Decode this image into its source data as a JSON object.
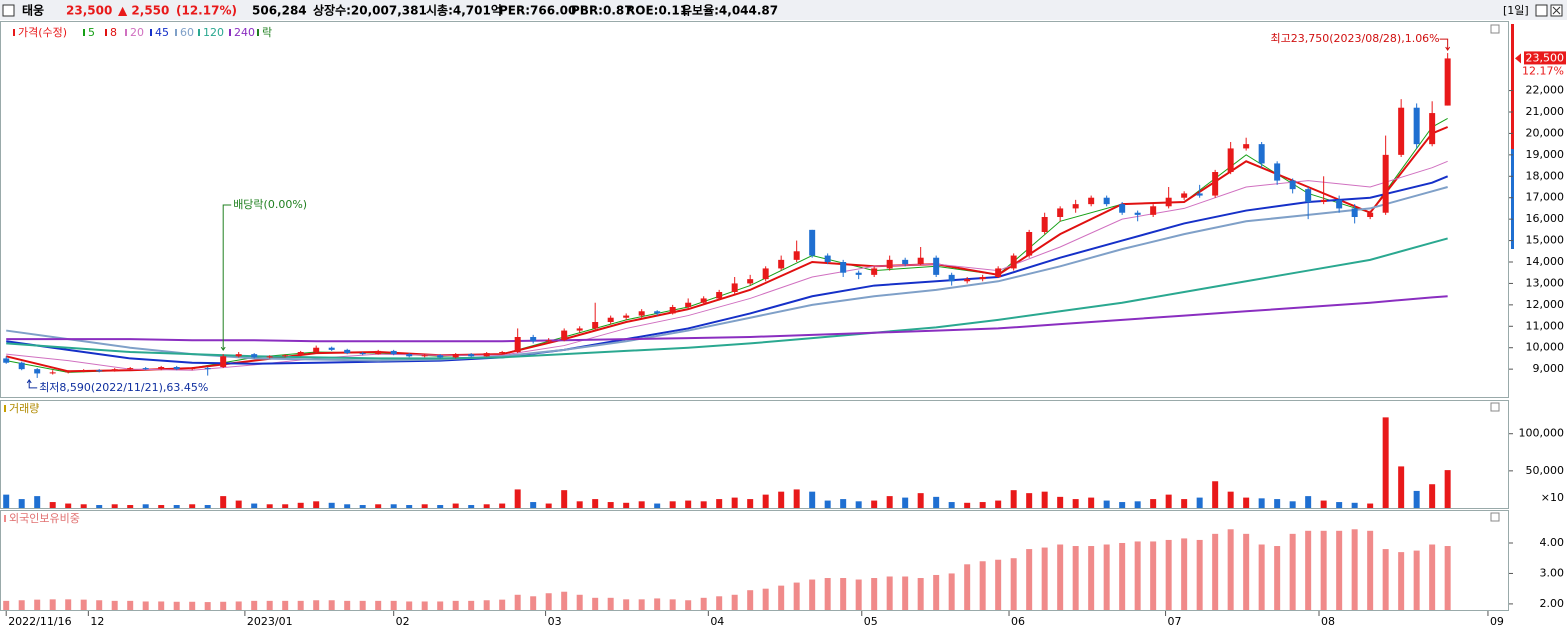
{
  "header": {
    "name": "태웅",
    "price": "23,500",
    "change": "▲ 2,550",
    "change_pct": "(12.17%)",
    "volume": "506,284",
    "listed": "상장수:20,007,381",
    "market_cap": "시총:4,701억",
    "per": "PER:766.00",
    "pbr": "PBR:0.87",
    "roe": "ROE:0.11",
    "reserve": "유보율:4,044.87",
    "period": "[1일]"
  },
  "chart_data": {
    "type": "candlestick",
    "legend": {
      "price": "가격(수정)",
      "ex": "락"
    },
    "xlim": [
      -0.4,
      96.7
    ],
    "xticks": [
      {
        "value": 0,
        "label": "2022/11/16"
      },
      {
        "value": 5.3,
        "label": "12"
      },
      {
        "value": 15.4,
        "label": "2023/01"
      },
      {
        "value": 25,
        "label": "02"
      },
      {
        "value": 34.8,
        "label": "03"
      },
      {
        "value": 45.3,
        "label": "04"
      },
      {
        "value": 55.2,
        "label": "05"
      },
      {
        "value": 64.7,
        "label": "06"
      },
      {
        "value": 74.8,
        "label": "07"
      },
      {
        "value": 84.7,
        "label": "08"
      },
      {
        "value": 95.6,
        "label": "09"
      }
    ],
    "ylim": [
      7700,
      25200
    ],
    "yticks": [
      {
        "value": 9000,
        "label": "9,000"
      },
      {
        "value": 10000,
        "label": "10,000"
      },
      {
        "value": 11000,
        "label": "11,000"
      },
      {
        "value": 12000,
        "label": "12,000"
      },
      {
        "value": 13000,
        "label": "13,000"
      },
      {
        "value": 14000,
        "label": "14,000"
      },
      {
        "value": 15000,
        "label": "15,000"
      },
      {
        "value": 16000,
        "label": "16,000"
      },
      {
        "value": 17000,
        "label": "17,000"
      },
      {
        "value": 18000,
        "label": "18,000"
      },
      {
        "value": 19000,
        "label": "19,000"
      },
      {
        "value": 20000,
        "label": "20,000"
      },
      {
        "value": 21000,
        "label": "21,000"
      },
      {
        "value": 22000,
        "label": "22,000"
      }
    ],
    "price_axis_label": {
      "value": 23500,
      "label": "23,500",
      "change": "12.17%"
    },
    "up_color": "#e8191a",
    "down_color": "#1f6fd1",
    "candles": [
      [
        9500,
        9600,
        9250,
        9300
      ],
      [
        9300,
        9350,
        8950,
        9000
      ],
      [
        9000,
        9050,
        8590,
        8800
      ],
      [
        8800,
        8950,
        8750,
        8850
      ],
      [
        8850,
        8950,
        8800,
        8900
      ],
      [
        8900,
        9000,
        8850,
        8950
      ],
      [
        8950,
        9000,
        8850,
        8900
      ],
      [
        8900,
        9050,
        8880,
        9000
      ],
      [
        9000,
        9100,
        8950,
        9050
      ],
      [
        9050,
        9100,
        8950,
        9000
      ],
      [
        9000,
        9150,
        8950,
        9100
      ],
      [
        9100,
        9150,
        8950,
        9000
      ],
      [
        9000,
        9100,
        8950,
        9050
      ],
      [
        9050,
        9100,
        8700,
        9000
      ],
      [
        9100,
        9700,
        9050,
        9600
      ],
      [
        9600,
        9800,
        9550,
        9700
      ],
      [
        9700,
        9750,
        9500,
        9550
      ],
      [
        9550,
        9650,
        9500,
        9600
      ],
      [
        9600,
        9700,
        9550,
        9650
      ],
      [
        9650,
        9850,
        9600,
        9800
      ],
      [
        9800,
        10100,
        9750,
        10000
      ],
      [
        10000,
        10050,
        9850,
        9900
      ],
      [
        9900,
        9950,
        9700,
        9750
      ],
      [
        9750,
        9800,
        9650,
        9700
      ],
      [
        9700,
        9900,
        9680,
        9850
      ],
      [
        9850,
        9900,
        9650,
        9700
      ],
      [
        9700,
        9750,
        9550,
        9600
      ],
      [
        9600,
        9700,
        9550,
        9650
      ],
      [
        9650,
        9700,
        9500,
        9550
      ],
      [
        9550,
        9750,
        9500,
        9700
      ],
      [
        9700,
        9750,
        9550,
        9600
      ],
      [
        9600,
        9800,
        9580,
        9750
      ],
      [
        9750,
        9850,
        9700,
        9800
      ],
      [
        9800,
        10900,
        9750,
        10500
      ],
      [
        10500,
        10600,
        10200,
        10300
      ],
      [
        10300,
        10450,
        10200,
        10350
      ],
      [
        10350,
        10900,
        10300,
        10800
      ],
      [
        10800,
        11000,
        10700,
        10900
      ],
      [
        10900,
        12100,
        10850,
        11200
      ],
      [
        11200,
        11500,
        11100,
        11400
      ],
      [
        11400,
        11600,
        11300,
        11500
      ],
      [
        11500,
        11800,
        11400,
        11700
      ],
      [
        11700,
        11750,
        11500,
        11600
      ],
      [
        11600,
        12000,
        11550,
        11900
      ],
      [
        11900,
        12300,
        11850,
        12100
      ],
      [
        12100,
        12400,
        12000,
        12300
      ],
      [
        12300,
        12700,
        12200,
        12600
      ],
      [
        12600,
        13300,
        12500,
        13000
      ],
      [
        13000,
        13400,
        12900,
        13200
      ],
      [
        13200,
        13800,
        13100,
        13700
      ],
      [
        13700,
        14300,
        13600,
        14100
      ],
      [
        14100,
        15000,
        14000,
        14500
      ],
      [
        15500,
        15500,
        14200,
        14300
      ],
      [
        14300,
        14400,
        13900,
        14000
      ],
      [
        14000,
        14100,
        13300,
        13500
      ],
      [
        13500,
        13600,
        13200,
        13400
      ],
      [
        13400,
        13800,
        13300,
        13700
      ],
      [
        13700,
        14300,
        13600,
        14100
      ],
      [
        14100,
        14200,
        13800,
        13900
      ],
      [
        13900,
        14700,
        13850,
        14200
      ],
      [
        14200,
        14300,
        13300,
        13400
      ],
      [
        13400,
        13500,
        12900,
        13100
      ],
      [
        13100,
        13300,
        13000,
        13200
      ],
      [
        13200,
        13400,
        13100,
        13300
      ],
      [
        13300,
        13800,
        13250,
        13700
      ],
      [
        13700,
        14400,
        13600,
        14300
      ],
      [
        14300,
        15500,
        14200,
        15400
      ],
      [
        15400,
        16300,
        15300,
        16100
      ],
      [
        16100,
        16600,
        15900,
        16500
      ],
      [
        16500,
        16900,
        16300,
        16700
      ],
      [
        16700,
        17100,
        16600,
        17000
      ],
      [
        17000,
        17100,
        16600,
        16700
      ],
      [
        16700,
        16800,
        16200,
        16300
      ],
      [
        16300,
        16400,
        15900,
        16200
      ],
      [
        16200,
        16700,
        16100,
        16600
      ],
      [
        16600,
        17500,
        16500,
        17000
      ],
      [
        17000,
        17300,
        16900,
        17200
      ],
      [
        17200,
        17600,
        17000,
        17100
      ],
      [
        17100,
        18300,
        17000,
        18200
      ],
      [
        18200,
        19600,
        18100,
        19300
      ],
      [
        19300,
        19800,
        19200,
        19500
      ],
      [
        19500,
        19600,
        18400,
        18600
      ],
      [
        18600,
        18700,
        17600,
        17800
      ],
      [
        17800,
        17900,
        17200,
        17400
      ],
      [
        17400,
        17500,
        16000,
        16800
      ],
      [
        16800,
        18000,
        16700,
        16900
      ],
      [
        16900,
        17100,
        16300,
        16500
      ],
      [
        16500,
        16700,
        15800,
        16100
      ],
      [
        16100,
        16400,
        16000,
        16300
      ],
      [
        16300,
        19900,
        16200,
        19000
      ],
      [
        19000,
        21600,
        18900,
        21200
      ],
      [
        21200,
        21400,
        19300,
        19500
      ],
      [
        19500,
        21500,
        19400,
        20950
      ],
      [
        21300,
        23750,
        21300,
        23500
      ]
    ],
    "ma_x": [
      0,
      4,
      8,
      12,
      16,
      20,
      24,
      28,
      32,
      36,
      40,
      44,
      48,
      52,
      56,
      60,
      64,
      68,
      72,
      76,
      80,
      84,
      88,
      92,
      93
    ],
    "series": [
      {
        "name": "5",
        "color": "#16a016",
        "width": 1,
        "values": [
          9400,
          8850,
          8950,
          9050,
          9550,
          9800,
          9750,
          9600,
          9700,
          10500,
          11300,
          11900,
          12900,
          14300,
          13600,
          13800,
          13400,
          15900,
          16700,
          16800,
          19000,
          17200,
          16300,
          20300,
          20700
        ]
      },
      {
        "name": "8",
        "color": "#e01010",
        "width": 2,
        "values": [
          9600,
          8900,
          8950,
          9050,
          9400,
          9750,
          9800,
          9650,
          9700,
          10400,
          11200,
          11800,
          12700,
          14000,
          13800,
          13900,
          13400,
          15300,
          16700,
          16800,
          18700,
          17500,
          16300,
          20000,
          20300
        ]
      },
      {
        "name": "20",
        "color": "#d070c0",
        "width": 1,
        "values": [
          9700,
          9400,
          9000,
          8950,
          9200,
          9500,
          9700,
          9650,
          9650,
          10100,
          10900,
          11500,
          12300,
          13300,
          13800,
          13900,
          13600,
          14700,
          16000,
          16500,
          17500,
          17800,
          17500,
          18400,
          18700
        ]
      },
      {
        "name": "45",
        "color": "#1530c8",
        "width": 2,
        "values": [
          10300,
          9900,
          9500,
          9300,
          9250,
          9300,
          9350,
          9400,
          9550,
          9900,
          10400,
          10900,
          11600,
          12400,
          12900,
          13100,
          13300,
          14200,
          15000,
          15800,
          16400,
          16800,
          17000,
          17700,
          18000
        ]
      },
      {
        "name": "60",
        "color": "#7fa0c8",
        "width": 2,
        "values": [
          10800,
          10400,
          10000,
          9700,
          9500,
          9450,
          9400,
          9450,
          9600,
          9900,
          10300,
          10800,
          11400,
          12000,
          12400,
          12700,
          13100,
          13800,
          14600,
          15300,
          15900,
          16200,
          16500,
          17300,
          17500
        ]
      },
      {
        "name": "120",
        "color": "#2aa890",
        "width": 2,
        "values": [
          10200,
          10000,
          9800,
          9700,
          9600,
          9550,
          9500,
          9500,
          9550,
          9700,
          9850,
          10000,
          10200,
          10450,
          10700,
          10950,
          11300,
          11700,
          12100,
          12600,
          13100,
          13600,
          14100,
          14900,
          15100
        ]
      },
      {
        "name": "240",
        "color": "#8a2ec0",
        "width": 2,
        "values": [
          10400,
          10400,
          10400,
          10350,
          10350,
          10300,
          10300,
          10300,
          10300,
          10350,
          10400,
          10450,
          10500,
          10600,
          10700,
          10800,
          10900,
          11100,
          11300,
          11500,
          11700,
          11900,
          12100,
          12350,
          12400
        ]
      }
    ],
    "annotations": {
      "high": "최고23,750(2023/08/28),1.06%",
      "low": "최저8,590(2022/11/21),63.45%",
      "dividend": {
        "label": "배당락(0.00%)",
        "x": 14
      }
    },
    "volume": {
      "label": "거래량",
      "unit": "×10",
      "ylim": [
        0,
        140000
      ],
      "yticks": [
        {
          "value": 50000,
          "label": "50,000"
        },
        {
          "value": 100000,
          "label": "100,000"
        }
      ],
      "values": [
        18000,
        12000,
        16000,
        8000,
        6000,
        5000,
        4000,
        5000,
        4000,
        5000,
        4000,
        4000,
        5000,
        4000,
        16000,
        10000,
        6000,
        5000,
        5000,
        7000,
        9000,
        7000,
        5000,
        4000,
        5000,
        5000,
        4000,
        5000,
        4000,
        6000,
        4000,
        5000,
        6000,
        25000,
        8000,
        6000,
        24000,
        9000,
        12000,
        8000,
        7000,
        9000,
        6000,
        9000,
        10000,
        9000,
        12000,
        14000,
        12000,
        18000,
        22000,
        25000,
        22000,
        10000,
        12000,
        9000,
        10000,
        16000,
        14000,
        20000,
        15000,
        8000,
        7000,
        8000,
        10000,
        24000,
        20000,
        22000,
        15000,
        12000,
        14000,
        10000,
        8000,
        9000,
        12000,
        18000,
        12000,
        14000,
        36000,
        22000,
        14000,
        13000,
        12000,
        9000,
        16000,
        10000,
        8000,
        7000,
        6000,
        122000,
        56000,
        23000,
        32000,
        51000
      ]
    },
    "foreign": {
      "label": "외국인보유비중",
      "color": "#f08a8a",
      "ylim": [
        1.8,
        5.05
      ],
      "yticks": [
        {
          "value": 2,
          "label": "2.00"
        },
        {
          "value": 3,
          "label": "3.00"
        },
        {
          "value": 4,
          "label": "4.00"
        }
      ],
      "values": [
        2.1,
        2.12,
        2.14,
        2.15,
        2.15,
        2.14,
        2.12,
        2.1,
        2.1,
        2.08,
        2.08,
        2.07,
        2.07,
        2.06,
        2.07,
        2.08,
        2.1,
        2.1,
        2.1,
        2.1,
        2.12,
        2.12,
        2.1,
        2.1,
        2.1,
        2.1,
        2.08,
        2.08,
        2.08,
        2.1,
        2.1,
        2.12,
        2.14,
        2.3,
        2.25,
        2.35,
        2.4,
        2.3,
        2.2,
        2.2,
        2.15,
        2.15,
        2.18,
        2.15,
        2.12,
        2.2,
        2.25,
        2.3,
        2.45,
        2.5,
        2.6,
        2.7,
        2.8,
        2.85,
        2.85,
        2.8,
        2.85,
        2.9,
        2.9,
        2.85,
        2.95,
        3.0,
        3.3,
        3.4,
        3.45,
        3.5,
        3.8,
        3.85,
        3.95,
        3.9,
        3.9,
        3.95,
        4.0,
        4.05,
        4.05,
        4.1,
        4.15,
        4.1,
        4.3,
        4.45,
        4.3,
        3.95,
        3.9,
        4.3,
        4.4,
        4.4,
        4.4,
        4.45,
        4.4,
        3.8,
        3.7,
        3.75,
        3.95,
        3.9
      ]
    }
  }
}
